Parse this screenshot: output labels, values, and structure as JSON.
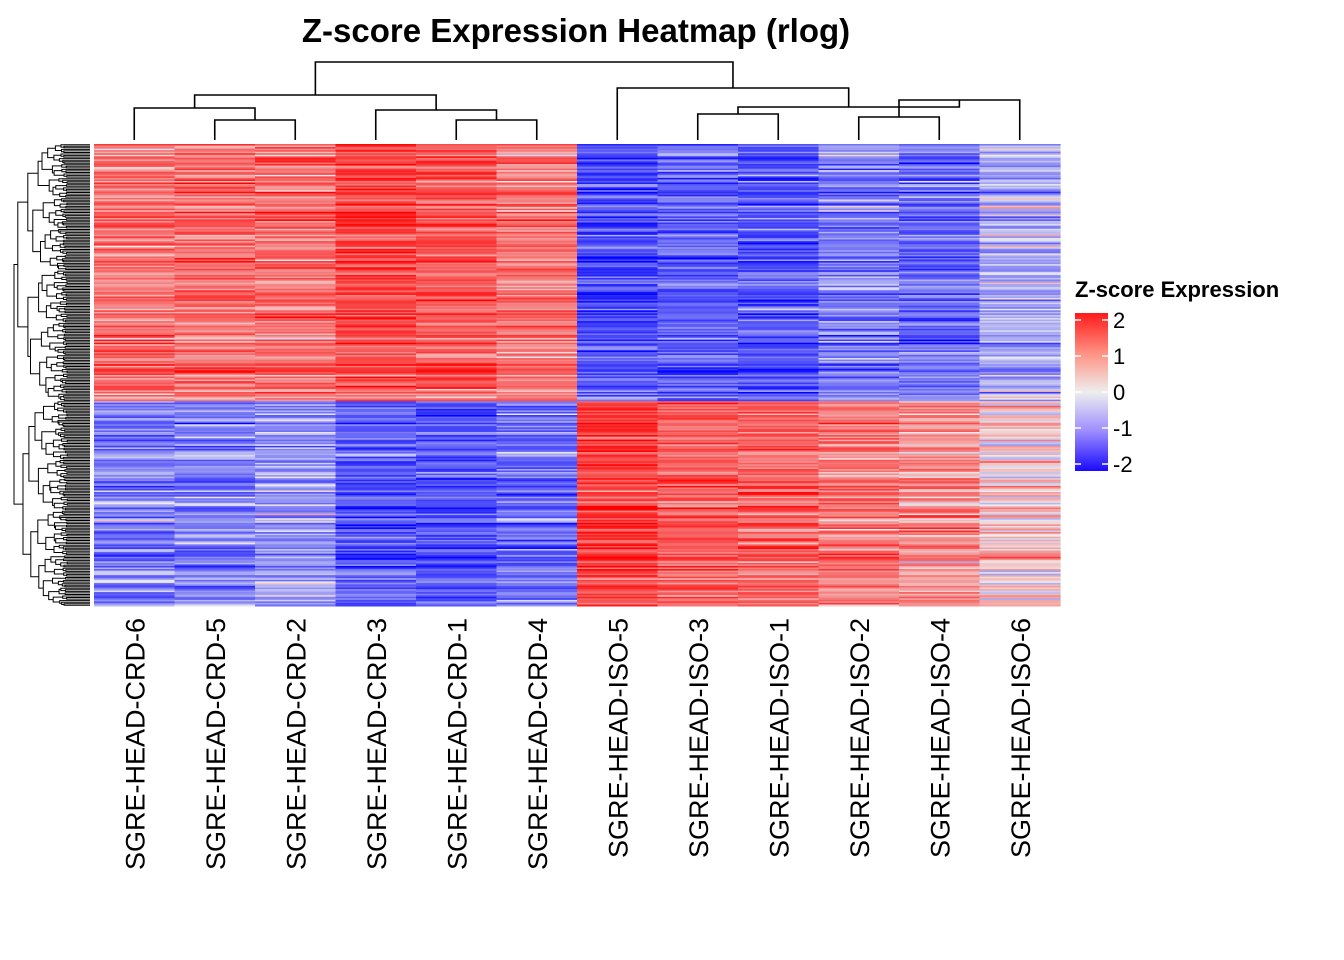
{
  "chart_data": {
    "type": "heatmap",
    "title": "Z-score Expression Heatmap (rlog)",
    "columns": [
      "SGRE-HEAD-CRD-6",
      "SGRE-HEAD-CRD-5",
      "SGRE-HEAD-CRD-2",
      "SGRE-HEAD-CRD-3",
      "SGRE-HEAD-CRD-1",
      "SGRE-HEAD-CRD-4",
      "SGRE-HEAD-ISO-5",
      "SGRE-HEAD-ISO-3",
      "SGRE-HEAD-ISO-1",
      "SGRE-HEAD-ISO-2",
      "SGRE-HEAD-ISO-4",
      "SGRE-HEAD-ISO-6"
    ],
    "row_blocks": [
      {
        "name": "upper gene cluster (~55% of genes)",
        "mean_z": [
          1.0,
          1.0,
          1.0,
          1.3,
          1.2,
          0.9,
          -1.3,
          -1.1,
          -1.2,
          -0.9,
          -1.0,
          -0.5
        ]
      },
      {
        "name": "lower gene cluster (~45% of genes)",
        "mean_z": [
          -0.8,
          -0.8,
          -0.6,
          -1.1,
          -1.2,
          -1.0,
          1.4,
          1.1,
          1.1,
          0.9,
          0.7,
          0.2
        ]
      }
    ],
    "color_scale": {
      "min": -2,
      "max": 2,
      "low_color": "#0000ff",
      "mid_color": "#eeeeee",
      "high_color": "#ff0000"
    },
    "legend": {
      "title": "Z-score Expression",
      "ticks": [
        "2",
        "1",
        "0",
        "-1",
        "-2"
      ],
      "tick_values": [
        2,
        1,
        0,
        -1,
        -2
      ]
    },
    "column_dendrogram": "((CRD-6,(CRD-5,CRD-2)),(CRD-3,(CRD-1,CRD-4))),(ISO-5,((ISO-3,ISO-1),((ISO-2,ISO-4),ISO-6)))",
    "row_dendrogram": "hierarchical clustering of ~800 genes"
  }
}
